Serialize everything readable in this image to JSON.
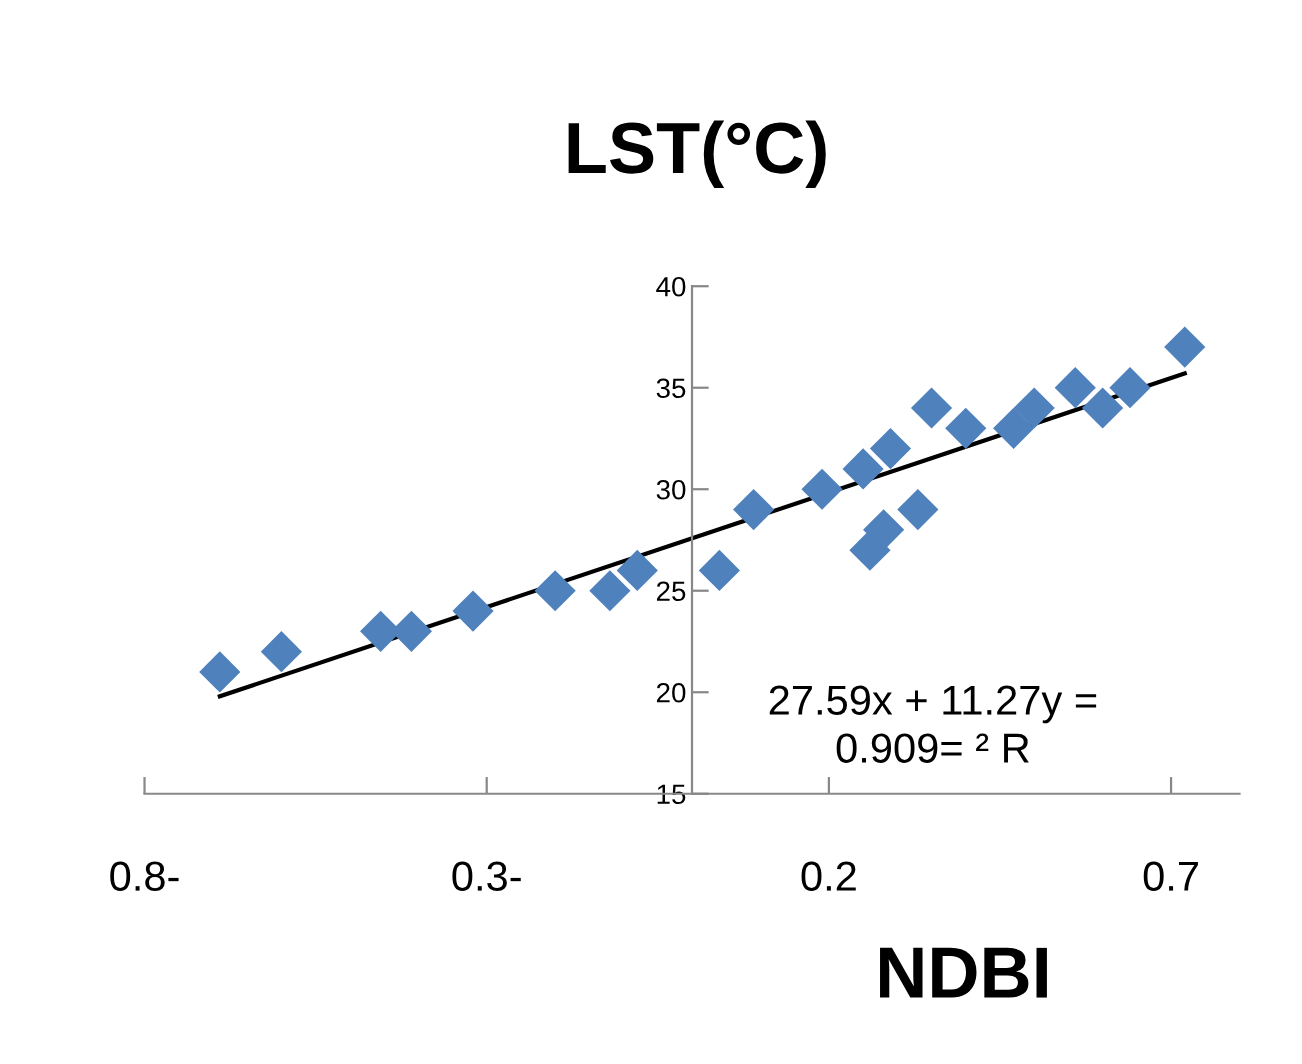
{
  "chart_data": {
    "type": "scatter",
    "title": "LST(°C)",
    "xlabel": "NDBI",
    "xlim": [
      -0.8,
      0.8
    ],
    "ylim": [
      15,
      40
    ],
    "xticks": [
      {
        "value": -0.8,
        "label": "0.8-"
      },
      {
        "value": -0.3,
        "label": "0.3-"
      },
      0.2,
      0.7
    ],
    "yticks": [
      15,
      20,
      25,
      30,
      35,
      40
    ],
    "grid": false,
    "legend": false,
    "series": [
      {
        "marker": "diamond",
        "color": "#4f81bd",
        "x": [
          -0.69,
          -0.6,
          -0.455,
          -0.41,
          -0.32,
          -0.2,
          -0.12,
          -0.08,
          0.04,
          0.09,
          0.19,
          0.25,
          0.29,
          0.26,
          0.28,
          0.33,
          0.35,
          0.4,
          0.47,
          0.5,
          0.56,
          0.6,
          0.64,
          0.72
        ],
        "values": [
          21,
          22,
          23,
          23,
          24,
          25,
          25,
          26,
          26,
          29,
          30,
          31,
          32,
          27,
          28,
          29,
          34,
          33,
          33,
          34,
          35,
          34,
          35,
          37
        ]
      },
      {
        "type": "line",
        "color": "#000000",
        "x": [
          -0.69,
          0.72
        ],
        "values": [
          19.8,
          35.7
        ]
      }
    ],
    "annotations": [
      "27.59x + 11.27y =\n0.909= ² R"
    ]
  }
}
